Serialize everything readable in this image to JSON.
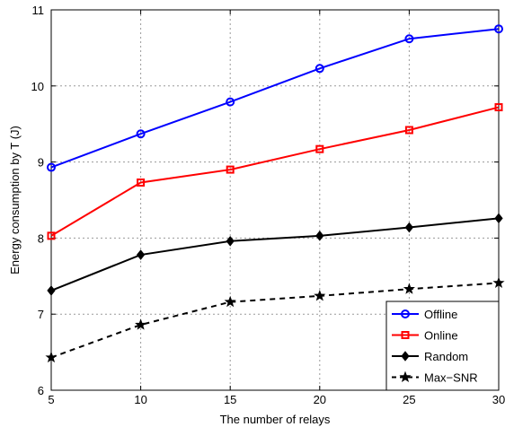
{
  "chart_data": {
    "type": "line",
    "title": "",
    "xlabel": "The number of relays",
    "ylabel": "Energy consumption by T (J)",
    "x": [
      5,
      10,
      15,
      20,
      25,
      30
    ],
    "xlim": [
      5,
      30
    ],
    "ylim": [
      6,
      11
    ],
    "xticks": [
      "5",
      "10",
      "15",
      "20",
      "25",
      "30"
    ],
    "yticks": [
      "6",
      "7",
      "8",
      "9",
      "10",
      "11"
    ],
    "grid": true,
    "legend_position": "bottom-right",
    "series": [
      {
        "name": "Offline",
        "values": [
          8.93,
          9.37,
          9.79,
          10.23,
          10.62,
          10.75
        ],
        "color": "#0000ff",
        "marker": "circle",
        "line": "solid"
      },
      {
        "name": "Online",
        "values": [
          8.03,
          8.73,
          8.9,
          9.17,
          9.42,
          9.72
        ],
        "color": "#ff0000",
        "marker": "square",
        "line": "solid"
      },
      {
        "name": "Random",
        "values": [
          7.31,
          7.78,
          7.96,
          8.03,
          8.14,
          8.26
        ],
        "color": "#000000",
        "marker": "diamond",
        "line": "solid"
      },
      {
        "name": "Max−SNR",
        "values": [
          6.43,
          6.86,
          7.16,
          7.24,
          7.33,
          7.41
        ],
        "color": "#000000",
        "marker": "star",
        "line": "dashed"
      }
    ]
  }
}
